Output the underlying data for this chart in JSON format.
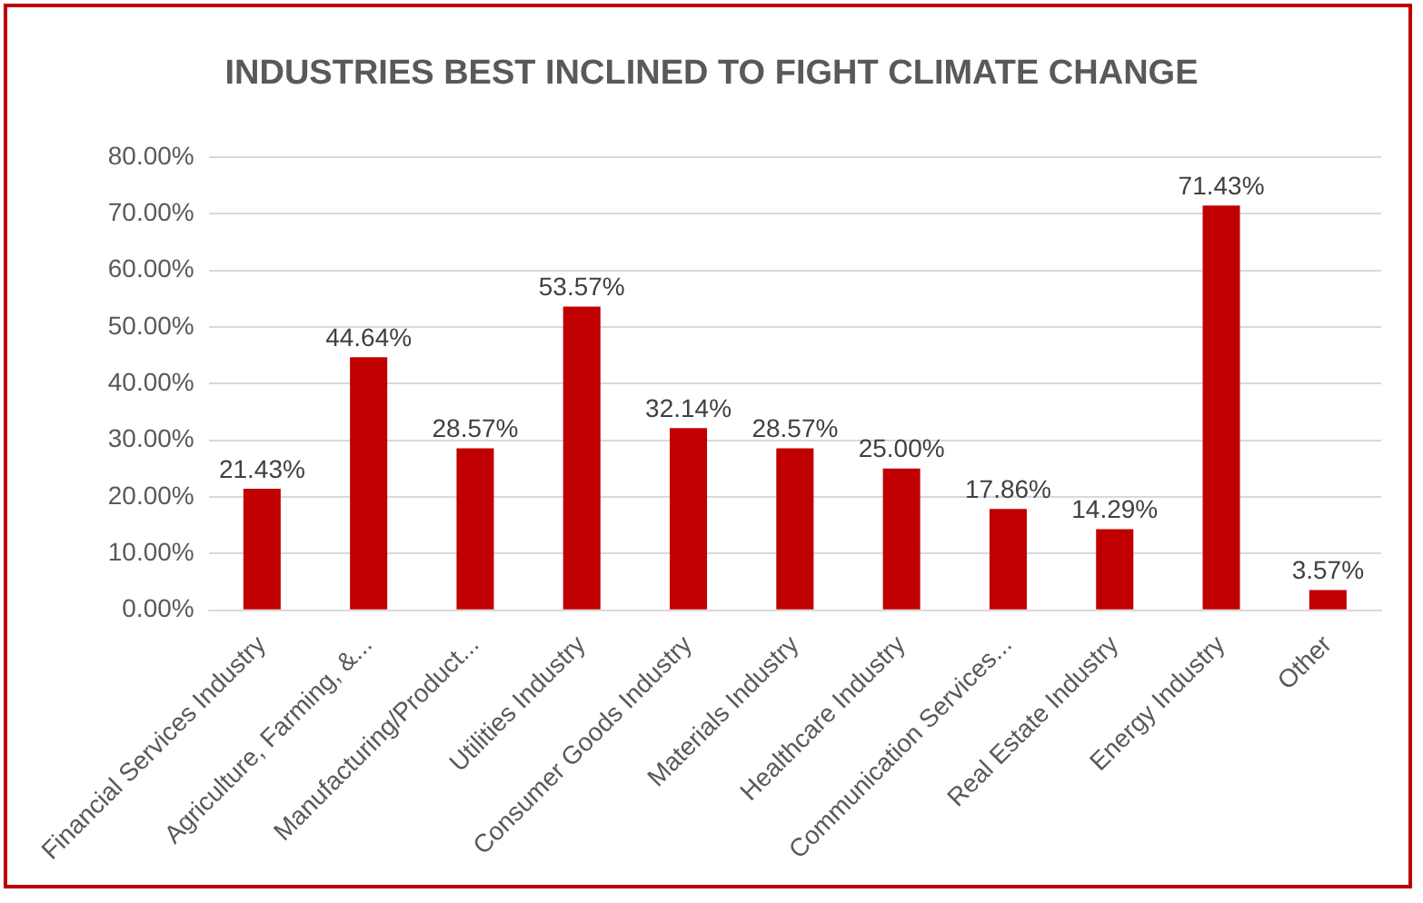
{
  "chart_data": {
    "type": "bar",
    "title": "INDUSTRIES BEST INCLINED TO FIGHT CLIMATE CHANGE",
    "categories": [
      "Financial Services Industry",
      "Agriculture, Farming, &...",
      "Manufacturing/Product...",
      "Utilities Industry",
      "Consumer Goods Industry",
      "Materials Industry",
      "Healthcare Industry",
      "Communication Services...",
      "Real Estate Industry",
      "Energy Industry",
      "Other"
    ],
    "values": [
      21.43,
      44.64,
      28.57,
      53.57,
      32.14,
      28.57,
      25.0,
      17.86,
      14.29,
      71.43,
      3.57
    ],
    "value_labels": [
      "21.43%",
      "44.64%",
      "28.57%",
      "53.57%",
      "32.14%",
      "28.57%",
      "25.00%",
      "17.86%",
      "14.29%",
      "71.43%",
      "3.57%"
    ],
    "color": "#c00000",
    "ylim": [
      0,
      80
    ],
    "yticks": [
      {
        "value": 0,
        "label": "0.00%"
      },
      {
        "value": 10,
        "label": "10.00%"
      },
      {
        "value": 20,
        "label": "20.00%"
      },
      {
        "value": 30,
        "label": "30.00%"
      },
      {
        "value": 40,
        "label": "40.00%"
      },
      {
        "value": 50,
        "label": "50.00%"
      },
      {
        "value": 60,
        "label": "60.00%"
      },
      {
        "value": 70,
        "label": "70.00%"
      },
      {
        "value": 80,
        "label": "80.00%"
      }
    ],
    "grid": "y",
    "legend": false
  }
}
